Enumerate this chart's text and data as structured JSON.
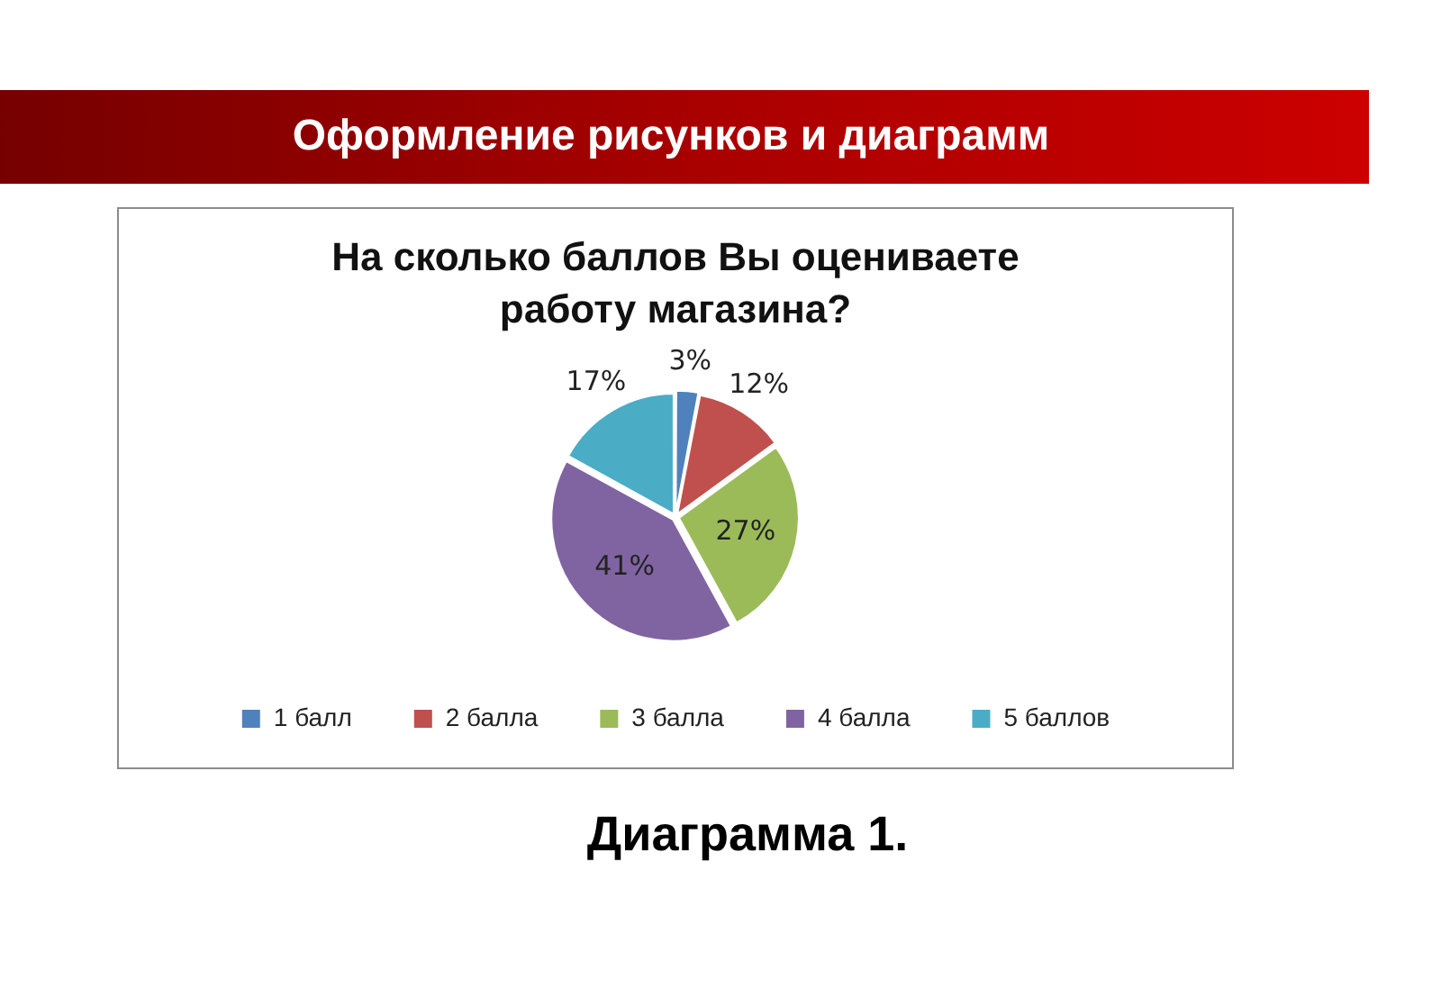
{
  "chart_data": {
    "type": "pie",
    "title": "На сколько баллов Вы оцениваете работу магазина?",
    "annotations": [
      "Оформление рисунков и диаграмм",
      "Диаграмма 1."
    ],
    "categories": [
      "1 балл",
      "2 балла",
      "3 балла",
      "4 балла",
      "5 баллов"
    ],
    "values": [
      3,
      12,
      27,
      41,
      17
    ],
    "value_labels": [
      "3%",
      "12%",
      "27%",
      "41%",
      "17%"
    ],
    "colors": [
      "#4f81bd",
      "#c0504d",
      "#9bbb59",
      "#8064a2",
      "#4bacc6"
    ],
    "legend": "bottom"
  }
}
